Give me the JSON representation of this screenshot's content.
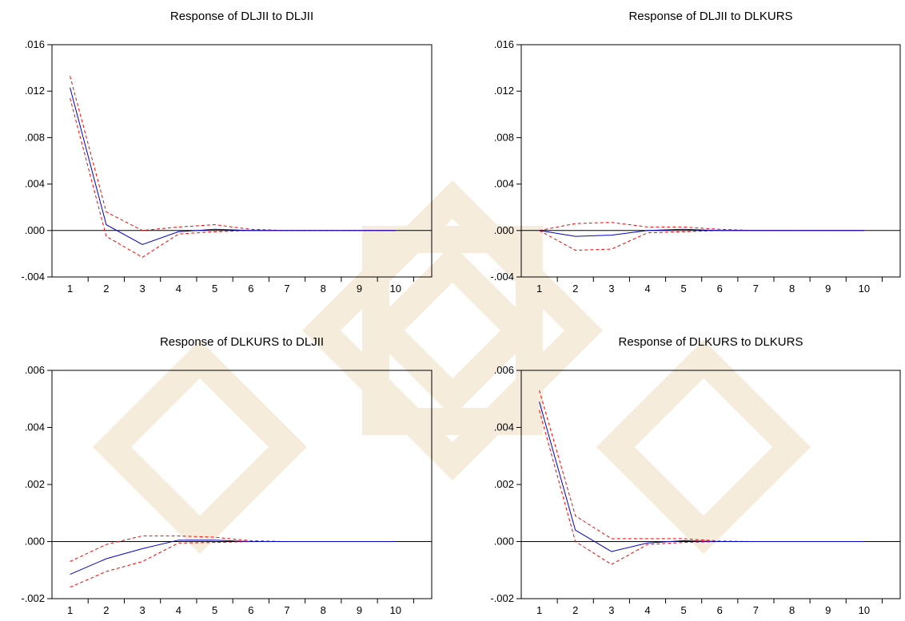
{
  "chart_data": [
    {
      "type": "line",
      "title": "Response of DLJII to DLJII",
      "x": [
        1,
        2,
        3,
        4,
        5,
        6,
        7,
        8,
        9,
        10
      ],
      "x_tick_labels": [
        "1",
        "2",
        "3",
        "4",
        "5",
        "6",
        "7",
        "8",
        "9",
        "10"
      ],
      "ylim": [
        -0.004,
        0.016
      ],
      "y_ticks": [
        -0.004,
        0.0,
        0.004,
        0.008,
        0.012,
        0.016
      ],
      "y_tick_labels": [
        "-.004",
        ".000",
        ".004",
        ".008",
        ".012",
        ".016"
      ],
      "series": [
        {
          "role": "response",
          "color": "#0000cc",
          "dash": false,
          "values": [
            0.0123,
            0.0005,
            -0.0012,
            -0.0001,
            0.0001,
            0.0,
            0.0,
            0.0,
            0.0,
            0.0
          ]
        },
        {
          "role": "upper band",
          "color": "#ff0000",
          "dash": true,
          "values": [
            0.0133,
            0.0016,
            0.0,
            0.0003,
            0.0005,
            0.0001,
            0.0,
            0.0,
            0.0,
            0.0
          ]
        },
        {
          "role": "lower band",
          "color": "#ff0000",
          "dash": true,
          "values": [
            0.0114,
            -0.0005,
            -0.0023,
            -0.0003,
            -0.0001,
            0.0,
            0.0,
            0.0,
            0.0,
            0.0
          ]
        }
      ]
    },
    {
      "type": "line",
      "title": "Response of DLJII to DLKURS",
      "x": [
        1,
        2,
        3,
        4,
        5,
        6,
        7,
        8,
        9,
        10
      ],
      "x_tick_labels": [
        "1",
        "2",
        "3",
        "4",
        "5",
        "6",
        "7",
        "8",
        "9",
        "10"
      ],
      "ylim": [
        -0.004,
        0.016
      ],
      "y_ticks": [
        -0.004,
        0.0,
        0.004,
        0.008,
        0.012,
        0.016
      ],
      "y_tick_labels": [
        "-.004",
        ".000",
        ".004",
        ".008",
        ".012",
        ".016"
      ],
      "series": [
        {
          "role": "response",
          "color": "#0000cc",
          "dash": false,
          "values": [
            0.0,
            -0.0005,
            -0.0004,
            0.0,
            0.0001,
            0.0,
            0.0,
            0.0,
            0.0,
            0.0
          ]
        },
        {
          "role": "upper band",
          "color": "#ff0000",
          "dash": true,
          "values": [
            0.0,
            0.0006,
            0.0007,
            0.0003,
            0.0003,
            0.0001,
            0.0,
            0.0,
            0.0,
            0.0
          ]
        },
        {
          "role": "lower band",
          "color": "#ff0000",
          "dash": true,
          "values": [
            0.0,
            -0.0017,
            -0.0016,
            -0.0002,
            -0.0001,
            0.0,
            0.0,
            0.0,
            0.0,
            0.0
          ]
        }
      ]
    },
    {
      "type": "line",
      "title": "Response of DLKURS to DLJII",
      "x": [
        1,
        2,
        3,
        4,
        5,
        6,
        7,
        8,
        9,
        10
      ],
      "x_tick_labels": [
        "1",
        "2",
        "3",
        "4",
        "5",
        "6",
        "7",
        "8",
        "9",
        "10"
      ],
      "ylim": [
        -0.002,
        0.006
      ],
      "y_ticks": [
        -0.002,
        0.0,
        0.002,
        0.004,
        0.006
      ],
      "y_tick_labels": [
        "-.002",
        ".000",
        ".002",
        ".004",
        ".006"
      ],
      "series": [
        {
          "role": "response",
          "color": "#0000cc",
          "dash": false,
          "values": [
            -0.00115,
            -0.0006,
            -0.00025,
            5e-05,
            5e-05,
            0.0,
            0.0,
            0.0,
            0.0,
            0.0
          ]
        },
        {
          "role": "upper band",
          "color": "#ff0000",
          "dash": true,
          "values": [
            -0.0007,
            -0.0001,
            0.0002,
            0.0002,
            0.00015,
            3e-05,
            0.0,
            0.0,
            0.0,
            0.0
          ]
        },
        {
          "role": "lower band",
          "color": "#ff0000",
          "dash": true,
          "values": [
            -0.0016,
            -0.00105,
            -0.0007,
            -5e-05,
            -3e-05,
            0.0,
            0.0,
            0.0,
            0.0,
            0.0
          ]
        }
      ]
    },
    {
      "type": "line",
      "title": "Response of DLKURS to DLKURS",
      "x": [
        1,
        2,
        3,
        4,
        5,
        6,
        7,
        8,
        9,
        10
      ],
      "x_tick_labels": [
        "1",
        "2",
        "3",
        "4",
        "5",
        "6",
        "7",
        "8",
        "9",
        "10"
      ],
      "ylim": [
        -0.002,
        0.006
      ],
      "y_ticks": [
        -0.002,
        0.0,
        0.002,
        0.004,
        0.006
      ],
      "y_tick_labels": [
        "-.002",
        ".000",
        ".002",
        ".004",
        ".006"
      ],
      "series": [
        {
          "role": "response",
          "color": "#0000cc",
          "dash": false,
          "values": [
            0.0049,
            0.0004,
            -0.00035,
            -5e-05,
            3e-05,
            0.0,
            0.0,
            0.0,
            0.0,
            0.0
          ]
        },
        {
          "role": "upper band",
          "color": "#ff0000",
          "dash": true,
          "values": [
            0.0053,
            0.0009,
            0.0001,
            0.0001,
            0.0001,
            2e-05,
            0.0,
            0.0,
            0.0,
            0.0
          ]
        },
        {
          "role": "lower band",
          "color": "#ff0000",
          "dash": true,
          "values": [
            0.0046,
            0.0,
            -0.0008,
            -0.0001,
            -3e-05,
            0.0,
            0.0,
            0.0,
            0.0,
            0.0
          ]
        }
      ]
    }
  ]
}
